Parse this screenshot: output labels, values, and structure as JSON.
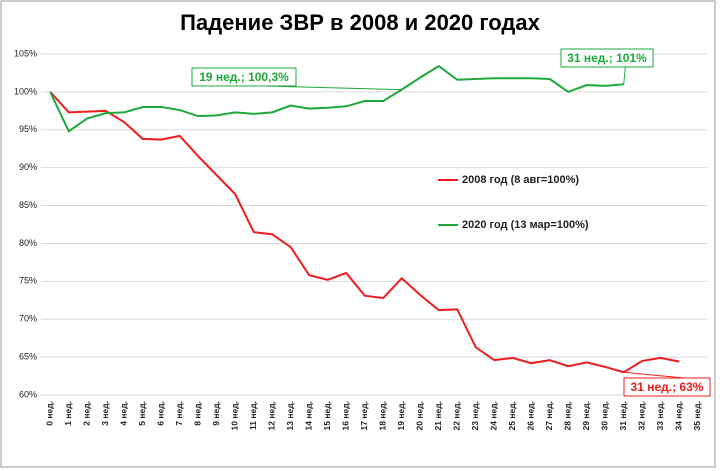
{
  "chart_data": {
    "type": "line",
    "title": "Падение ЗВР в 2008 и 2020 годах",
    "categories": [
      "0 нед.",
      "1 нед.",
      "2 нед.",
      "3 нед.",
      "4 нед.",
      "5 нед.",
      "6 нед.",
      "7 нед.",
      "8 нед.",
      "9 нед.",
      "10 нед.",
      "11 нед.",
      "12 нед.",
      "13 нед.",
      "14 нед.",
      "15 нед.",
      "16 нед.",
      "17 нед.",
      "18 нед.",
      "19 нед.",
      "20 нед.",
      "21 нед.",
      "22 нед.",
      "23 нед.",
      "24 нед.",
      "25 нед.",
      "26 нед.",
      "27 нед.",
      "28 нед.",
      "29 нед.",
      "30 нед.",
      "31 нед.",
      "32 нед.",
      "33 нед.",
      "34 нед.",
      "35 нед."
    ],
    "series": [
      {
        "name": "2008 год (8 авг=100%)",
        "color": "#ee1c1c",
        "values": [
          100,
          97.3,
          97.4,
          97.5,
          96.0,
          93.8,
          93.7,
          94.2,
          91.5,
          89.0,
          86.5,
          81.5,
          81.2,
          79.5,
          75.8,
          75.2,
          76.1,
          73.1,
          72.8,
          75.4,
          73.2,
          71.2,
          71.3,
          66.3,
          64.6,
          64.9,
          64.2,
          64.6,
          63.8,
          64.3,
          63.7,
          63,
          64.5,
          64.9,
          64.4,
          null
        ]
      },
      {
        "name": "2020 год (13 мар=100%)",
        "color": "#1ea83c",
        "values": [
          100,
          94.8,
          96.5,
          97.2,
          97.3,
          98.0,
          98.0,
          97.6,
          96.8,
          96.9,
          97.3,
          97.1,
          97.3,
          98.2,
          97.8,
          97.9,
          98.1,
          98.8,
          98.8,
          100.3,
          101.9,
          103.4,
          101.6,
          101.7,
          101.8,
          101.8,
          101.8,
          101.7,
          100.0,
          100.9,
          100.8,
          101,
          null,
          null,
          null,
          null
        ]
      }
    ],
    "annotations": [
      "19 нед.; 100,3%",
      "31 нед.; 101%",
      "31 нед.; 63%"
    ],
    "ylim": [
      60,
      105
    ],
    "yticks": [
      {
        "value": 60,
        "label": "60%"
      },
      {
        "value": 65,
        "label": "65%"
      },
      {
        "value": 70,
        "label": "70%"
      },
      {
        "value": 75,
        "label": "75%"
      },
      {
        "value": 80,
        "label": "80%"
      },
      {
        "value": 85,
        "label": "85%"
      },
      {
        "value": 90,
        "label": "90%"
      },
      {
        "value": 95,
        "label": "95%"
      },
      {
        "value": 100,
        "label": "100%"
      },
      {
        "value": 105,
        "label": "105%"
      }
    ],
    "grid": true
  }
}
